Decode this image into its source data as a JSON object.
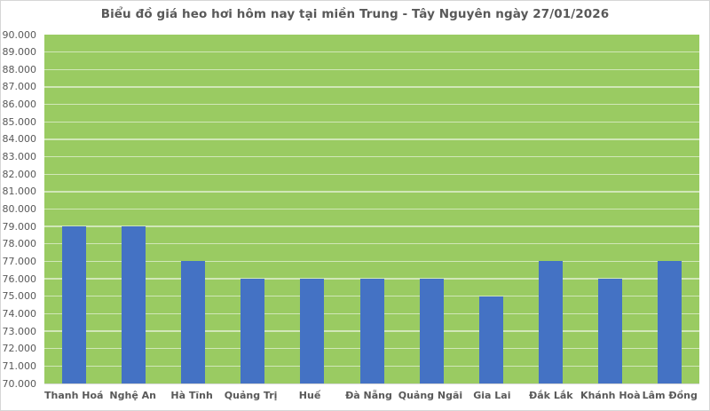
{
  "chart_data": {
    "type": "bar",
    "title": "Biểu đồ giá heo hơi hôm nay tại miền Trung - Tây Nguyên ngày 27/01/2026",
    "categories": [
      "Thanh Hoá",
      "Nghệ An",
      "Hà Tĩnh",
      "Quảng Trị",
      "Huế",
      "Đà Nẵng",
      "Quảng Ngãi",
      "Gia Lai",
      "Đắk Lắk",
      "Khánh Hoà",
      "Lâm Đồng"
    ],
    "values": [
      79000,
      79000,
      77000,
      76000,
      76000,
      76000,
      76000,
      75000,
      77000,
      76000,
      77000
    ],
    "xlabel": "",
    "ylabel": "",
    "ylim": [
      70000,
      90000
    ],
    "ytick_step": 1000,
    "ytick_labels": [
      "90.000",
      "89.000",
      "88.000",
      "87.000",
      "86.000",
      "85.000",
      "84.000",
      "83.000",
      "82.000",
      "81.000",
      "80.000",
      "79.000",
      "78.000",
      "77.000",
      "76.000",
      "75.000",
      "74.000",
      "73.000",
      "72.000",
      "71.000",
      "70.000"
    ],
    "grid": "horizontal",
    "legend": "none",
    "colors": {
      "bar": "#4472c4",
      "plot_background": "#9acb62",
      "gridline": "rgba(255,255,255,0.55)",
      "text": "#595959",
      "chart_border": "#d6d6d6"
    }
  }
}
